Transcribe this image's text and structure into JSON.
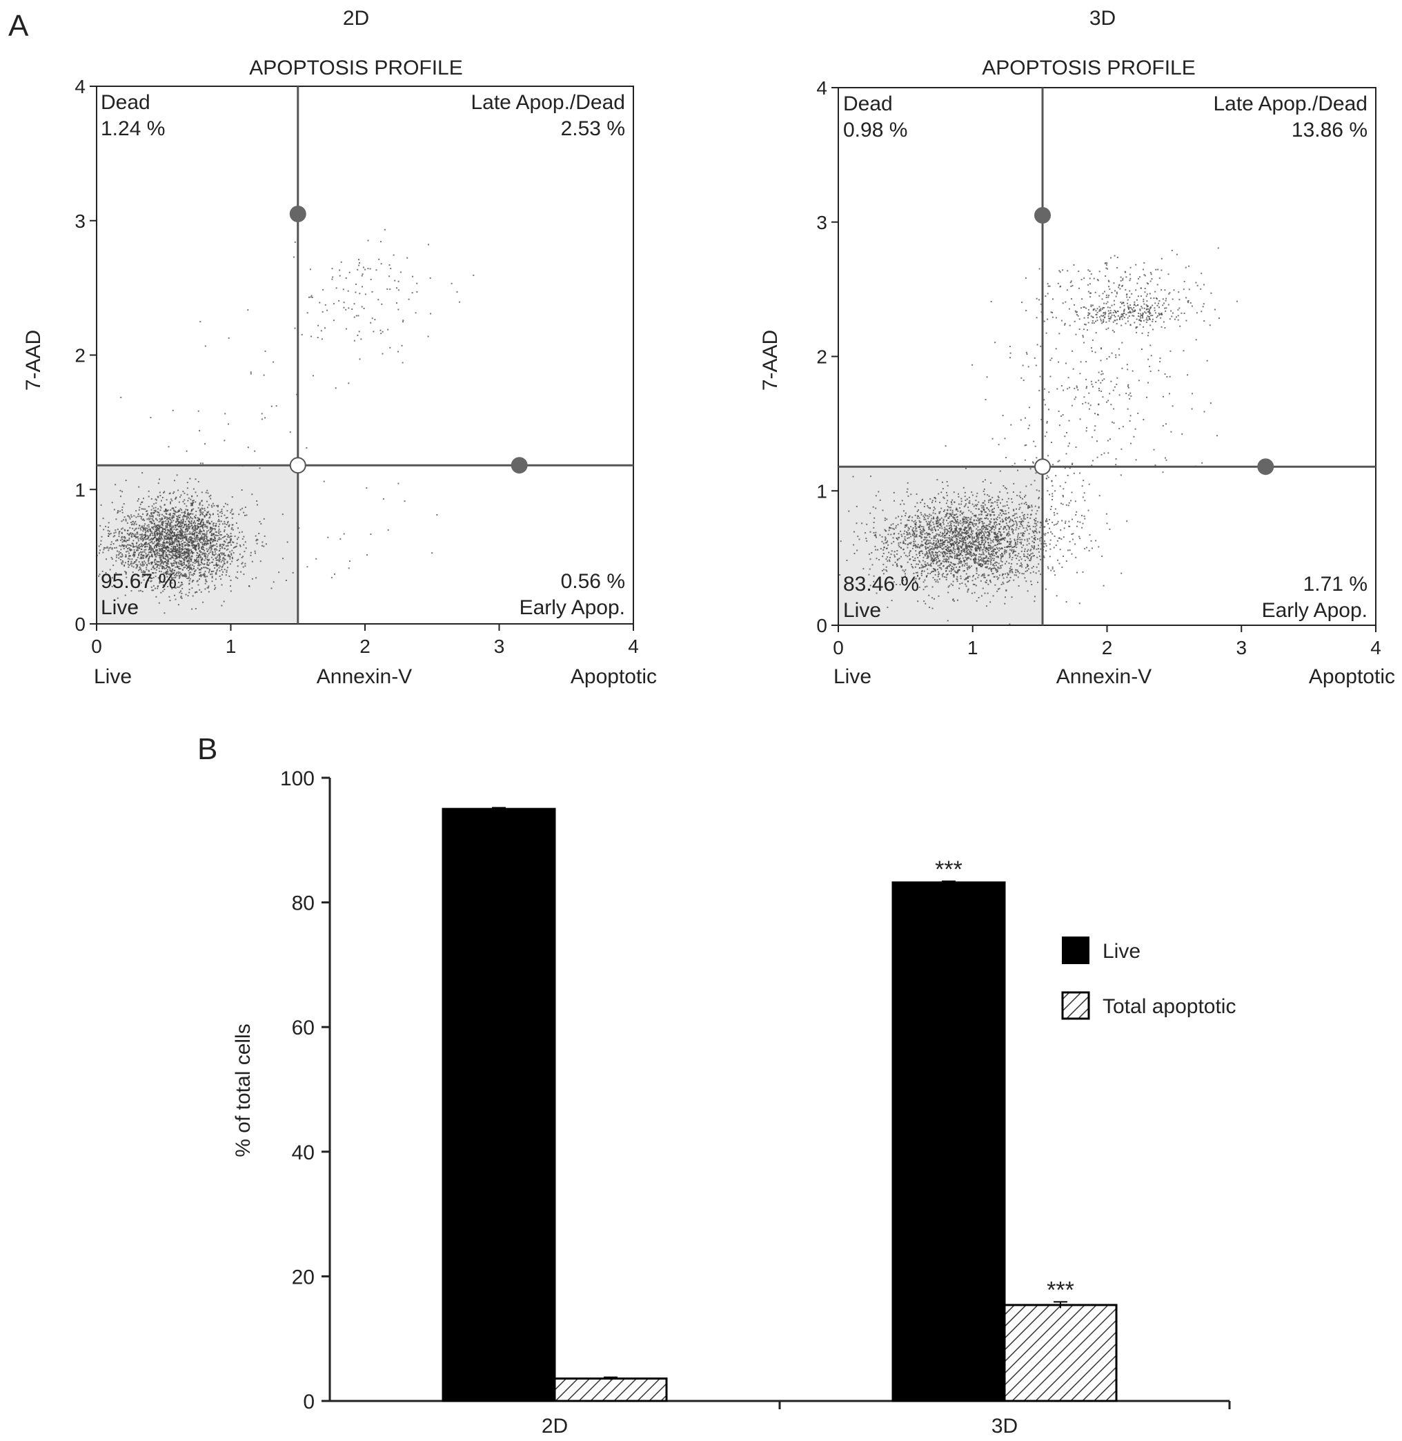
{
  "panel_labels": {
    "a": "A",
    "b": "B"
  },
  "colors": {
    "axis": "#222222",
    "gate_line": "#555555",
    "live_gate_fill": "#e8e8e8",
    "event": "#444444",
    "handle_filled": "#666666",
    "handle_open": "#ffffff",
    "bar_live": "#000000",
    "bar_apoptotic_hatch": "#333333"
  },
  "chart_data": [
    {
      "type": "scatter",
      "group_label": "2D",
      "title": "APOPTOSIS PROFILE",
      "ylabel": "7-AAD",
      "xlabel": "Annexin-V",
      "x_end_labels": {
        "left": "Live",
        "right": "Apoptotic"
      },
      "xlim": [
        0,
        4
      ],
      "ylim": [
        0,
        4
      ],
      "xticks": [
        0,
        1,
        2,
        3,
        4
      ],
      "yticks": [
        0,
        1,
        2,
        3,
        4
      ],
      "gate": {
        "x": 1.5,
        "y": 1.18,
        "handle_top_y": 3.05,
        "handle_right_x": 3.15
      },
      "quadrants": {
        "upper_left": {
          "label": "Dead",
          "value": "1.24 %"
        },
        "upper_right": {
          "label": "Late Apop./Dead",
          "value": "2.53 %"
        },
        "lower_left": {
          "label": "Live",
          "value": "95.67 %"
        },
        "lower_right": {
          "label": "Early Apop.",
          "value": "0.56 %"
        }
      },
      "populations": [
        {
          "cx": 0.6,
          "cy": 0.6,
          "sx": 0.24,
          "sy": 0.16,
          "n": 2600
        },
        {
          "cx": 2.0,
          "cy": 2.4,
          "sx": 0.28,
          "sy": 0.22,
          "n": 120
        },
        {
          "cx": 1.1,
          "cy": 1.6,
          "sx": 0.4,
          "sy": 0.35,
          "n": 45
        },
        {
          "cx": 1.9,
          "cy": 0.7,
          "sx": 0.35,
          "sy": 0.25,
          "n": 18
        }
      ]
    },
    {
      "type": "scatter",
      "group_label": "3D",
      "title": "APOPTOSIS PROFILE",
      "ylabel": "7-AAD",
      "xlabel": "Annexin-V",
      "x_end_labels": {
        "left": "Live",
        "right": "Apoptotic"
      },
      "xlim": [
        0,
        4
      ],
      "ylim": [
        0,
        4
      ],
      "xticks": [
        0,
        1,
        2,
        3,
        4
      ],
      "yticks": [
        0,
        1,
        2,
        3,
        4
      ],
      "gate": {
        "x": 1.52,
        "y": 1.18,
        "handle_top_y": 3.05,
        "handle_right_x": 3.18
      },
      "quadrants": {
        "upper_left": {
          "label": "Dead",
          "value": "0.98 %"
        },
        "upper_right": {
          "label": "Late Apop./Dead",
          "value": "13.86 %"
        },
        "lower_left": {
          "label": "Live",
          "value": "83.46 %"
        },
        "lower_right": {
          "label": "Early Apop.",
          "value": "1.71 %"
        }
      },
      "populations": [
        {
          "cx": 0.95,
          "cy": 0.62,
          "sx": 0.32,
          "sy": 0.17,
          "n": 2400
        },
        {
          "cx": 2.15,
          "cy": 2.32,
          "sx": 0.25,
          "sy": 0.05,
          "n": 260
        },
        {
          "cx": 2.1,
          "cy": 2.5,
          "sx": 0.3,
          "sy": 0.12,
          "n": 200
        },
        {
          "cx": 1.9,
          "cy": 1.7,
          "sx": 0.35,
          "sy": 0.35,
          "n": 260
        },
        {
          "cx": 1.55,
          "cy": 0.9,
          "sx": 0.2,
          "sy": 0.25,
          "n": 120
        }
      ]
    },
    {
      "type": "bar",
      "categories": [
        "2D",
        "3D"
      ],
      "ylabel": "% of total cells",
      "ylim": [
        0,
        100
      ],
      "yticks": [
        0,
        20,
        40,
        60,
        80,
        100
      ],
      "series": [
        {
          "name": "Live",
          "values": [
            95.0,
            83.2
          ],
          "errors": [
            0.2,
            0.2
          ],
          "annotations": [
            "",
            "***"
          ]
        },
        {
          "name": "Total apoptotic",
          "values": [
            3.6,
            15.4
          ],
          "errors": [
            0.2,
            0.5
          ],
          "annotations": [
            "",
            "***"
          ]
        }
      ],
      "legend_position": "right"
    }
  ]
}
